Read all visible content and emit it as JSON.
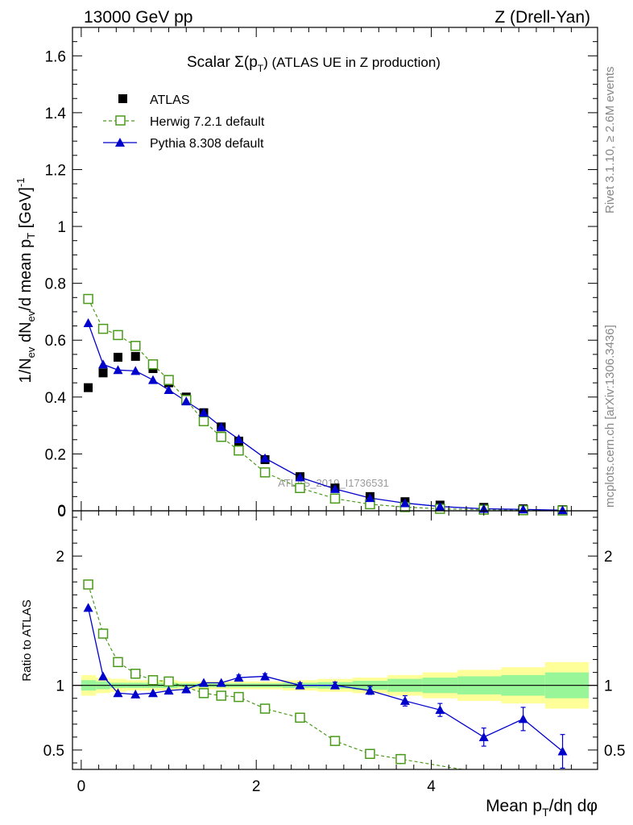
{
  "header": {
    "left": "13000 GeV pp",
    "right": "Z (Drell-Yan)"
  },
  "side_labels": {
    "rivet": "Rivet 3.1.10, ≥ 2.6M events",
    "mcplots": "mcplots.cern.ch [arXiv:1306.3436]"
  },
  "chart_data": [
    {
      "type": "scatter",
      "title": "Scalar Σ(p_T) (ATLAS UE in Z production)",
      "title_parts": {
        "main": "Scalar Σ(p",
        "sub": "T",
        "tail": ") (ATLAS UE in Z production)"
      },
      "ylabel": "1/N_ev dN_ev/d mean p_T [GeV]^-1",
      "ylabel_parts": {
        "a": "1/N",
        "a_sub": "ev",
        "b": " dN",
        "b_sub": "ev",
        "c": "/d mean p",
        "c_sub": "T",
        "d": " [GeV]",
        "d_sup": "-1"
      },
      "watermark": "ATLAS_2019_I1736531",
      "ylim": [
        0,
        1.7
      ],
      "xlim": [
        -0.1,
        5.9
      ],
      "yticks": [
        0,
        0.2,
        0.4,
        0.6,
        0.8,
        1,
        1.2,
        1.4,
        1.6
      ],
      "ytick_labels": [
        "0",
        "0.2",
        "0.4",
        "0.6",
        "0.8",
        "1",
        "1.2",
        "1.4",
        "1.6"
      ],
      "legend_position": "top-left",
      "series": [
        {
          "name": "ATLAS",
          "color": "#000000",
          "marker": "filled-square",
          "x": [
            0.08,
            0.25,
            0.42,
            0.62,
            0.82,
            1.0,
            1.2,
            1.4,
            1.6,
            1.8,
            2.1,
            2.5,
            2.9,
            3.3,
            3.7,
            4.1,
            4.6,
            5.05,
            5.5
          ],
          "y": [
            0.433,
            0.485,
            0.54,
            0.543,
            0.5,
            0.45,
            0.4,
            0.345,
            0.295,
            0.245,
            0.18,
            0.12,
            0.08,
            0.05,
            0.032,
            0.02,
            0.012,
            0.007,
            0.004
          ]
        },
        {
          "name": "Herwig 7.2.1 default",
          "color": "#4a9a1a",
          "marker": "open-square",
          "line": "dashed",
          "x": [
            0.08,
            0.25,
            0.42,
            0.62,
            0.82,
            1.0,
            1.2,
            1.4,
            1.6,
            1.8,
            2.1,
            2.5,
            2.9,
            3.3,
            3.7,
            4.1,
            4.6,
            5.05,
            5.5
          ],
          "y": [
            0.745,
            0.64,
            0.618,
            0.58,
            0.515,
            0.46,
            0.39,
            0.315,
            0.26,
            0.212,
            0.135,
            0.08,
            0.043,
            0.023,
            0.013,
            0.007,
            0.004,
            0.002,
            0.001
          ]
        },
        {
          "name": "Pythia 8.308 default",
          "color": "#0000cc",
          "marker": "filled-triangle",
          "line": "solid",
          "x": [
            0.08,
            0.25,
            0.42,
            0.62,
            0.82,
            1.0,
            1.2,
            1.4,
            1.6,
            1.8,
            2.1,
            2.5,
            2.9,
            3.3,
            3.7,
            4.1,
            4.6,
            5.05,
            5.5
          ],
          "y": [
            0.66,
            0.515,
            0.495,
            0.492,
            0.46,
            0.425,
            0.385,
            0.345,
            0.295,
            0.252,
            0.185,
            0.118,
            0.077,
            0.045,
            0.027,
            0.015,
            0.007,
            0.005,
            0.002
          ]
        }
      ]
    },
    {
      "type": "scatter",
      "ylabel": "Ratio to ATLAS",
      "xlabel": "Mean p_T/dη dφ",
      "xlabel_parts": {
        "a": "Mean p",
        "a_sub": "T",
        "b": "/dη dφ"
      },
      "ylim": [
        0.35,
        2.35
      ],
      "xlim": [
        -0.1,
        5.9
      ],
      "xticks": [
        0,
        2,
        4
      ],
      "xtick_labels": [
        "0",
        "2",
        "4"
      ],
      "yticks": [
        0.5,
        1,
        2
      ],
      "ytick_labels": [
        "0.5",
        "1",
        "2"
      ],
      "bins": [
        0,
        0.17,
        0.33,
        0.52,
        0.72,
        0.91,
        1.1,
        1.3,
        1.5,
        1.7,
        1.9,
        2.3,
        2.7,
        3.1,
        3.5,
        3.9,
        4.3,
        4.8,
        5.3,
        5.8
      ],
      "band_inner_halfwidth": [
        0.04,
        0.03,
        0.02,
        0.02,
        0.02,
        0.02,
        0.015,
        0.015,
        0.015,
        0.015,
        0.015,
        0.02,
        0.025,
        0.035,
        0.05,
        0.06,
        0.07,
        0.08,
        0.1
      ],
      "band_outer_halfwidth": [
        0.08,
        0.06,
        0.05,
        0.04,
        0.04,
        0.04,
        0.03,
        0.03,
        0.03,
        0.03,
        0.03,
        0.04,
        0.05,
        0.06,
        0.08,
        0.1,
        0.12,
        0.14,
        0.18
      ],
      "band_colors": {
        "inner": "#98f598",
        "outer": "#ffff99"
      },
      "series": [
        {
          "name": "Herwig 7.2.1 default",
          "color": "#4a9a1a",
          "x": [
            0.08,
            0.25,
            0.42,
            0.62,
            0.82,
            1.0,
            1.4,
            1.6,
            1.8,
            2.1,
            2.5,
            2.9,
            3.3,
            3.65
          ],
          "y": [
            1.78,
            1.4,
            1.18,
            1.09,
            1.04,
            1.03,
            0.94,
            0.92,
            0.91,
            0.82,
            0.75,
            0.57,
            0.47,
            0.43
          ],
          "err": [
            0.02,
            0.02,
            0.02,
            0.01,
            0.01,
            0.01,
            0.01,
            0.01,
            0.01,
            0.01,
            0.01,
            0.015,
            0.02,
            0.04
          ]
        },
        {
          "name": "Pythia 8.308 default",
          "color": "#0000cc",
          "x": [
            0.08,
            0.25,
            0.42,
            0.62,
            0.82,
            1.0,
            1.2,
            1.4,
            1.6,
            1.8,
            2.1,
            2.5,
            2.9,
            3.3,
            3.7,
            4.1,
            4.6,
            5.05,
            5.5
          ],
          "y": [
            1.6,
            1.07,
            0.94,
            0.93,
            0.94,
            0.96,
            0.97,
            1.02,
            1.02,
            1.06,
            1.07,
            1.0,
            1.0,
            0.96,
            0.88,
            0.81,
            0.6,
            0.74,
            0.49
          ],
          "err": [
            0.01,
            0.01,
            0.01,
            0.01,
            0.01,
            0.01,
            0.01,
            0.01,
            0.015,
            0.02,
            0.02,
            0.02,
            0.025,
            0.03,
            0.04,
            0.05,
            0.07,
            0.09,
            0.13
          ]
        }
      ]
    }
  ]
}
